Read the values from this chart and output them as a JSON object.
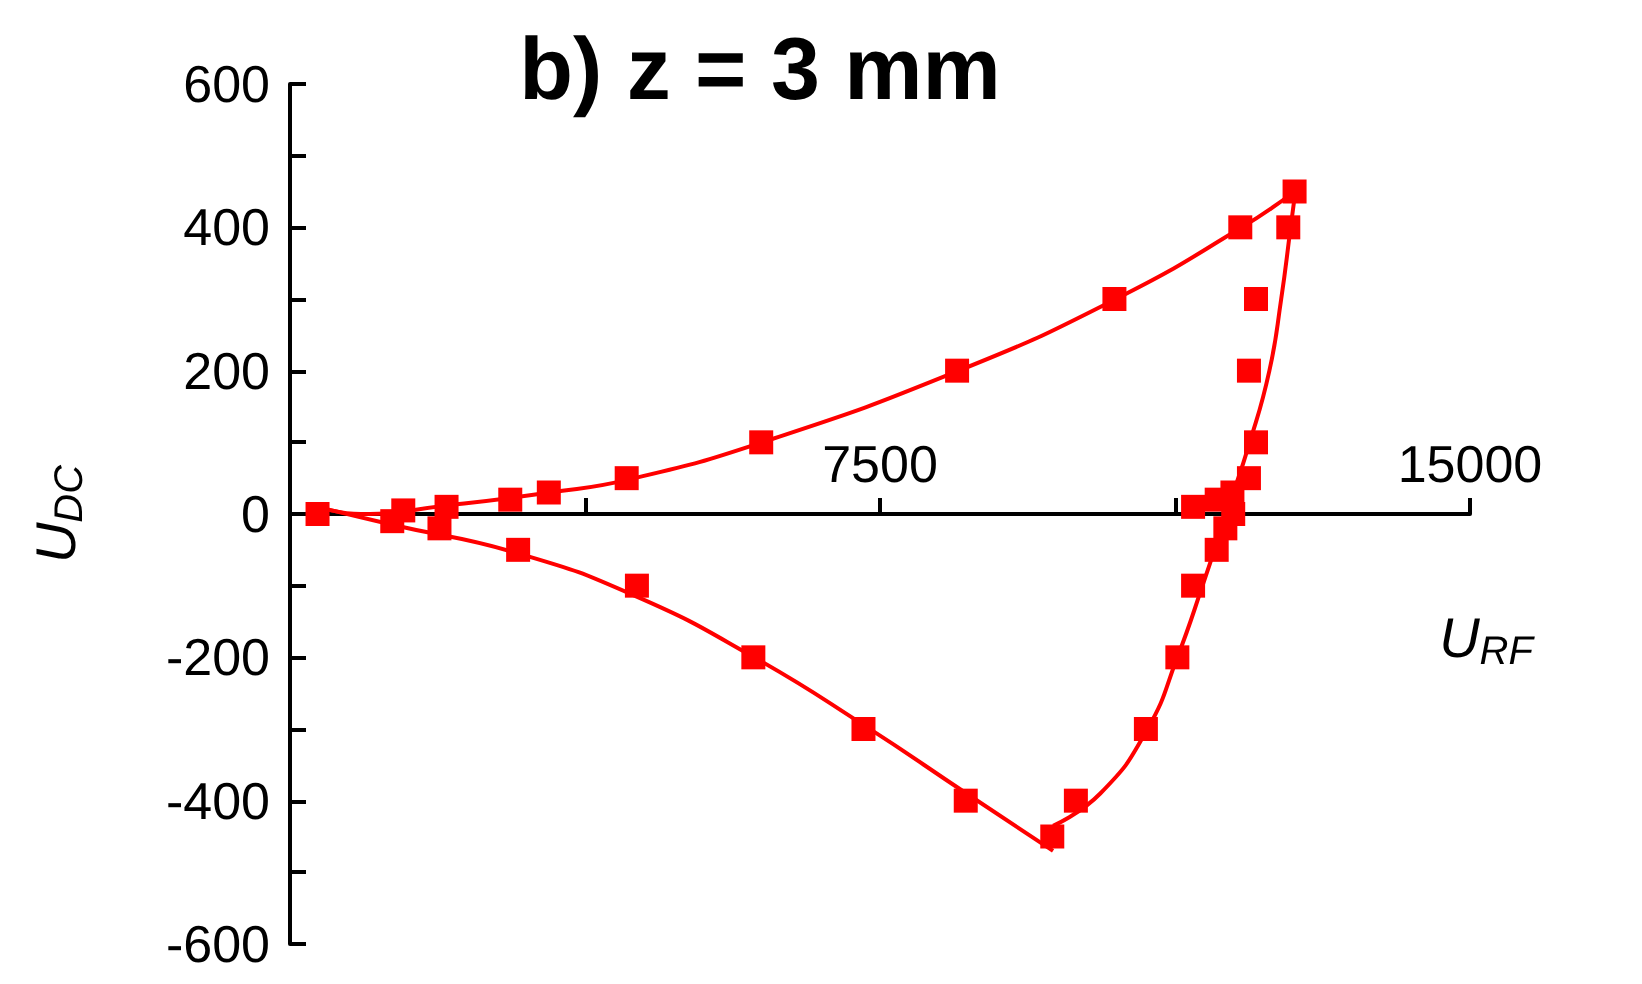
{
  "chart_data": {
    "type": "scatter",
    "title": "b) z = 3 mm",
    "xlabel": "U$_{RF}$",
    "ylabel": "U$_{DC}$",
    "xlim": [
      0,
      15000
    ],
    "ylim": [
      -600,
      600
    ],
    "xticks": [
      {
        "value": 3750,
        "label": null
      },
      7500,
      {
        "value": 11250,
        "label": null
      },
      15000
    ],
    "yticks": [
      -600,
      {
        "value": -500,
        "label": null
      },
      -400,
      {
        "value": -300,
        "label": null
      },
      -200,
      {
        "value": -100,
        "label": null
      },
      0,
      {
        "value": 100,
        "label": null
      },
      200,
      {
        "value": 300,
        "label": null
      },
      400,
      {
        "value": 500,
        "label": null
      },
      600
    ],
    "series": [
      {
        "type": "scatter",
        "marker": "square",
        "color": "#ff0000",
        "x": [
          350,
          1440,
          1990,
          2800,
          3290,
          4280,
          5990,
          8480,
          10480,
          12080,
          12770,
          12690,
          12280,
          12190,
          12280,
          12190,
          11980,
          11780,
          11480,
          11990,
          11890,
          11780,
          11480,
          11280,
          10880,
          9990,
          9690,
          8590,
          7290,
          5890,
          4410,
          2900,
          1900,
          1300
        ],
        "values": [
          0,
          5,
          10,
          20,
          30,
          50,
          100,
          200,
          300,
          400,
          450,
          400,
          300,
          200,
          100,
          50,
          30,
          20,
          10,
          0,
          -20,
          -50,
          -100,
          -200,
          -300,
          -400,
          -450,
          -400,
          -300,
          -200,
          -100,
          -50,
          -20,
          -10
        ]
      },
      {
        "type": "line",
        "marker": "none",
        "color": "#ff0000",
        "x": [
          350,
          900,
          2000,
          3300,
          4300,
          6000,
          8500,
          10500,
          12100,
          12770
        ],
        "values": [
          10,
          0,
          12,
          30,
          48,
          100,
          200,
          300,
          400,
          450
        ]
      },
      {
        "type": "line",
        "marker": "none",
        "color": "#ff0000",
        "x": [
          350,
          1300,
          2900,
          4400,
          5900,
          7300,
          8600,
          9700
        ],
        "values": [
          10,
          -15,
          -55,
          -115,
          -200,
          -295,
          -390,
          -470
        ]
      },
      {
        "type": "line",
        "marker": "none",
        "color": "#ff0000",
        "x": [
          9700,
          10300,
          10900,
          11280,
          11600,
          11900,
          12200,
          12450,
          12600,
          12720,
          12780
        ],
        "values": [
          -435,
          -390,
          -300,
          -200,
          -100,
          0,
          100,
          200,
          300,
          400,
          450
        ]
      }
    ]
  }
}
